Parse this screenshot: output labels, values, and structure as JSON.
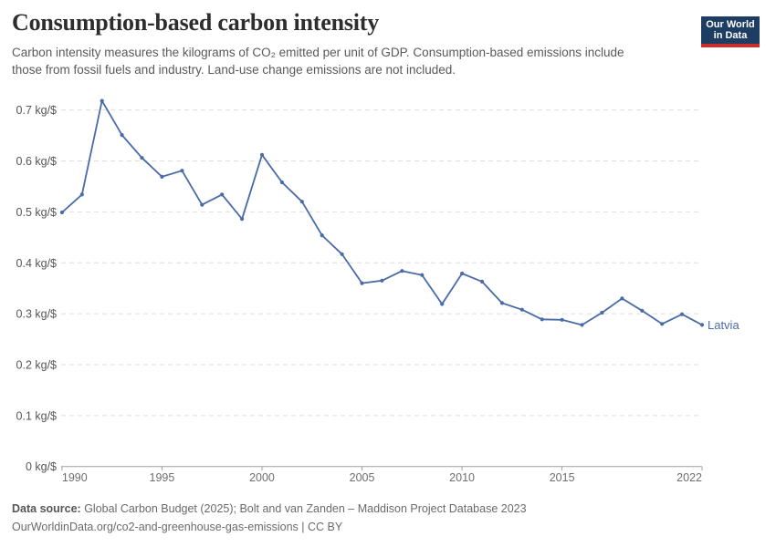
{
  "header": {
    "title": "Consumption-based carbon intensity",
    "subtitle": "Carbon intensity measures the kilograms of CO₂ emitted per unit of GDP. Consumption-based emissions include those from fossil fuels and industry. Land-use change emissions are not included.",
    "logo": {
      "line1": "Our World",
      "line2": "in Data"
    }
  },
  "chart_data": {
    "type": "line",
    "title": "Consumption-based carbon intensity",
    "unit": "kg/$",
    "grid": "horizontal-dashed",
    "legend_position": "end-of-line-label",
    "xlim": [
      1990,
      2022
    ],
    "ylim": [
      0,
      0.75
    ],
    "x_ticks": [
      {
        "year": 1990,
        "label": "1990",
        "anchor": "start"
      },
      {
        "year": 1995,
        "label": "1995",
        "anchor": "middle"
      },
      {
        "year": 2000,
        "label": "2000",
        "anchor": "middle"
      },
      {
        "year": 2005,
        "label": "2005",
        "anchor": "middle"
      },
      {
        "year": 2010,
        "label": "2010",
        "anchor": "middle"
      },
      {
        "year": 2015,
        "label": "2015",
        "anchor": "middle"
      },
      {
        "year": 2022,
        "label": "2022",
        "anchor": "end"
      }
    ],
    "y_ticks": [
      {
        "value": 0.0,
        "label": "0 kg/$"
      },
      {
        "value": 0.1,
        "label": "0.1 kg/$"
      },
      {
        "value": 0.2,
        "label": "0.2 kg/$"
      },
      {
        "value": 0.3,
        "label": "0.3 kg/$"
      },
      {
        "value": 0.4,
        "label": "0.4 kg/$"
      },
      {
        "value": 0.5,
        "label": "0.5 kg/$"
      },
      {
        "value": 0.6,
        "label": "0.6 kg/$"
      },
      {
        "value": 0.7,
        "label": "0.7 kg/$"
      }
    ],
    "series": [
      {
        "name": "Latvia",
        "color": "#4a6ba8",
        "x": [
          1990,
          1991,
          1992,
          1993,
          1994,
          1995,
          1996,
          1997,
          1998,
          1999,
          2000,
          2001,
          2002,
          2003,
          2004,
          2005,
          2006,
          2007,
          2008,
          2009,
          2010,
          2011,
          2012,
          2013,
          2014,
          2015,
          2016,
          2017,
          2018,
          2019,
          2020,
          2021,
          2022
        ],
        "values": [
          0.499,
          0.534,
          0.718,
          0.651,
          0.606,
          0.569,
          0.581,
          0.514,
          0.534,
          0.486,
          0.612,
          0.558,
          0.52,
          0.454,
          0.417,
          0.36,
          0.365,
          0.384,
          0.376,
          0.319,
          0.379,
          0.363,
          0.321,
          0.308,
          0.289,
          0.288,
          0.278,
          0.302,
          0.33,
          0.306,
          0.28,
          0.299,
          0.278
        ]
      }
    ]
  },
  "footer": {
    "source_label": "Data source:",
    "source_text": " Global Carbon Budget (2025); Bolt and van Zanden – Maddison Project Database 2023",
    "citation": "OurWorldinData.org/co2-and-greenhouse-gas-emissions | CC BY"
  },
  "colors": {
    "series_blue": "#4a6ba8",
    "grid": "#dedede",
    "axis": "#a1a1a1",
    "y_tick_text": "#56565a",
    "x_tick_text": "#6e6e6e",
    "logo_bg": "#1d3d63",
    "logo_bar": "#c9302b"
  }
}
